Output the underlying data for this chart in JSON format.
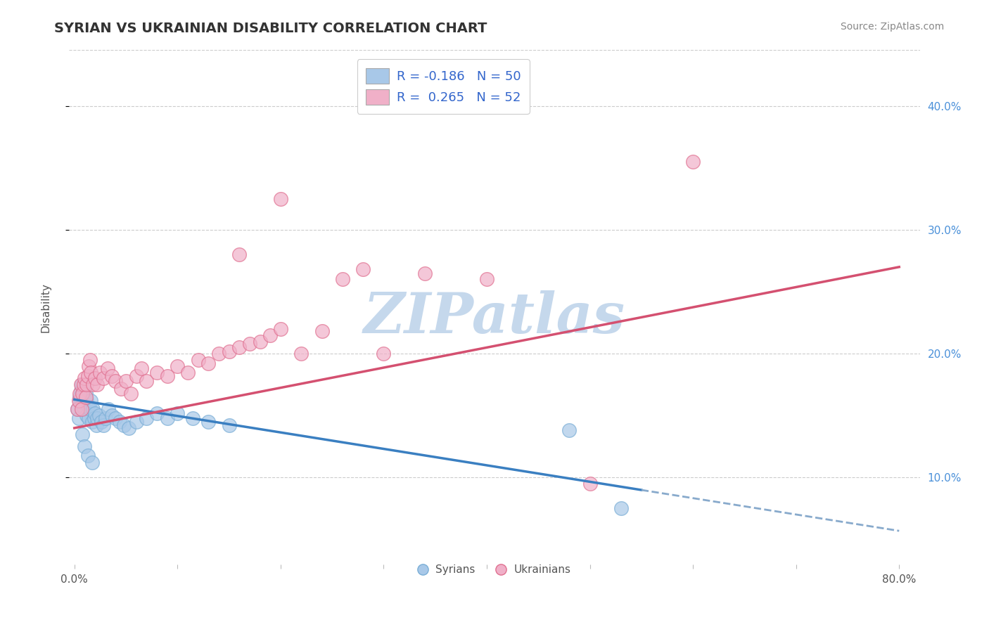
{
  "title": "SYRIAN VS UKRAINIAN DISABILITY CORRELATION CHART",
  "source": "Source: ZipAtlas.com",
  "ylabel": "Disability",
  "xlim": [
    -0.005,
    0.82
  ],
  "ylim": [
    0.03,
    0.445
  ],
  "xticks": [
    0.0,
    0.1,
    0.2,
    0.3,
    0.4,
    0.5,
    0.6,
    0.7,
    0.8
  ],
  "xticklabels": [
    "0.0%",
    "",
    "",
    "",
    "",
    "",
    "",
    "",
    "80.0%"
  ],
  "yticks_right": [
    0.1,
    0.2,
    0.3,
    0.4
  ],
  "yticklabels_right": [
    "10.0%",
    "20.0%",
    "30.0%",
    "40.0%"
  ],
  "syrians_color": "#a8c8e8",
  "syrians_edge": "#7aaed6",
  "ukrainians_color": "#f0b0c8",
  "ukrainians_edge": "#e07090",
  "syrians_x": [
    0.003,
    0.004,
    0.005,
    0.006,
    0.007,
    0.007,
    0.008,
    0.008,
    0.009,
    0.009,
    0.01,
    0.01,
    0.011,
    0.012,
    0.012,
    0.013,
    0.014,
    0.015,
    0.016,
    0.017,
    0.018,
    0.019,
    0.02,
    0.021,
    0.022,
    0.024,
    0.026,
    0.028,
    0.03,
    0.033,
    0.036,
    0.04,
    0.044,
    0.048,
    0.053,
    0.06,
    0.07,
    0.08,
    0.09,
    0.1,
    0.115,
    0.13,
    0.15,
    0.005,
    0.008,
    0.01,
    0.013,
    0.017,
    0.48,
    0.53
  ],
  "syrians_y": [
    0.155,
    0.148,
    0.162,
    0.17,
    0.165,
    0.175,
    0.168,
    0.158,
    0.172,
    0.16,
    0.162,
    0.155,
    0.168,
    0.162,
    0.15,
    0.158,
    0.148,
    0.155,
    0.162,
    0.145,
    0.155,
    0.148,
    0.152,
    0.142,
    0.148,
    0.15,
    0.145,
    0.142,
    0.148,
    0.155,
    0.15,
    0.148,
    0.145,
    0.142,
    0.14,
    0.145,
    0.148,
    0.152,
    0.148,
    0.152,
    0.148,
    0.145,
    0.142,
    0.165,
    0.135,
    0.125,
    0.118,
    0.112,
    0.138,
    0.075
  ],
  "ukrainians_x": [
    0.003,
    0.004,
    0.005,
    0.006,
    0.007,
    0.008,
    0.009,
    0.01,
    0.011,
    0.012,
    0.013,
    0.014,
    0.015,
    0.016,
    0.018,
    0.02,
    0.022,
    0.025,
    0.028,
    0.032,
    0.036,
    0.04,
    0.045,
    0.05,
    0.055,
    0.06,
    0.065,
    0.07,
    0.08,
    0.09,
    0.1,
    0.11,
    0.12,
    0.13,
    0.14,
    0.15,
    0.16,
    0.17,
    0.18,
    0.19,
    0.2,
    0.22,
    0.24,
    0.26,
    0.28,
    0.3,
    0.34,
    0.4,
    0.5,
    0.6,
    0.16,
    0.2
  ],
  "ukrainians_y": [
    0.155,
    0.162,
    0.168,
    0.175,
    0.155,
    0.168,
    0.175,
    0.18,
    0.165,
    0.175,
    0.182,
    0.19,
    0.195,
    0.185,
    0.175,
    0.18,
    0.175,
    0.185,
    0.18,
    0.188,
    0.182,
    0.178,
    0.172,
    0.178,
    0.168,
    0.182,
    0.188,
    0.178,
    0.185,
    0.182,
    0.19,
    0.185,
    0.195,
    0.192,
    0.2,
    0.202,
    0.205,
    0.208,
    0.21,
    0.215,
    0.22,
    0.2,
    0.218,
    0.26,
    0.268,
    0.2,
    0.265,
    0.26,
    0.095,
    0.355,
    0.28,
    0.325
  ],
  "watermark": "ZIPatlas",
  "watermark_color": "#c5d8ec",
  "grid_color": "#cccccc",
  "blue_trend_x0": 0.0,
  "blue_trend_y0": 0.163,
  "blue_trend_x1": 0.55,
  "blue_trend_y1": 0.09,
  "blue_trend_dashed_x0": 0.55,
  "blue_trend_dashed_y0": 0.09,
  "blue_trend_dashed_x1": 0.8,
  "blue_trend_dashed_y1": 0.057,
  "pink_trend_x0": 0.0,
  "pink_trend_y0": 0.14,
  "pink_trend_x1": 0.8,
  "pink_trend_y1": 0.27,
  "legend_label1": "R = -0.186   N = 50",
  "legend_label2": "R =  0.265   N = 52",
  "syrians_legend": "Syrians",
  "ukrainians_legend": "Ukrainians",
  "title_fontsize": 14,
  "tick_fontsize": 11,
  "legend_fontsize": 13
}
